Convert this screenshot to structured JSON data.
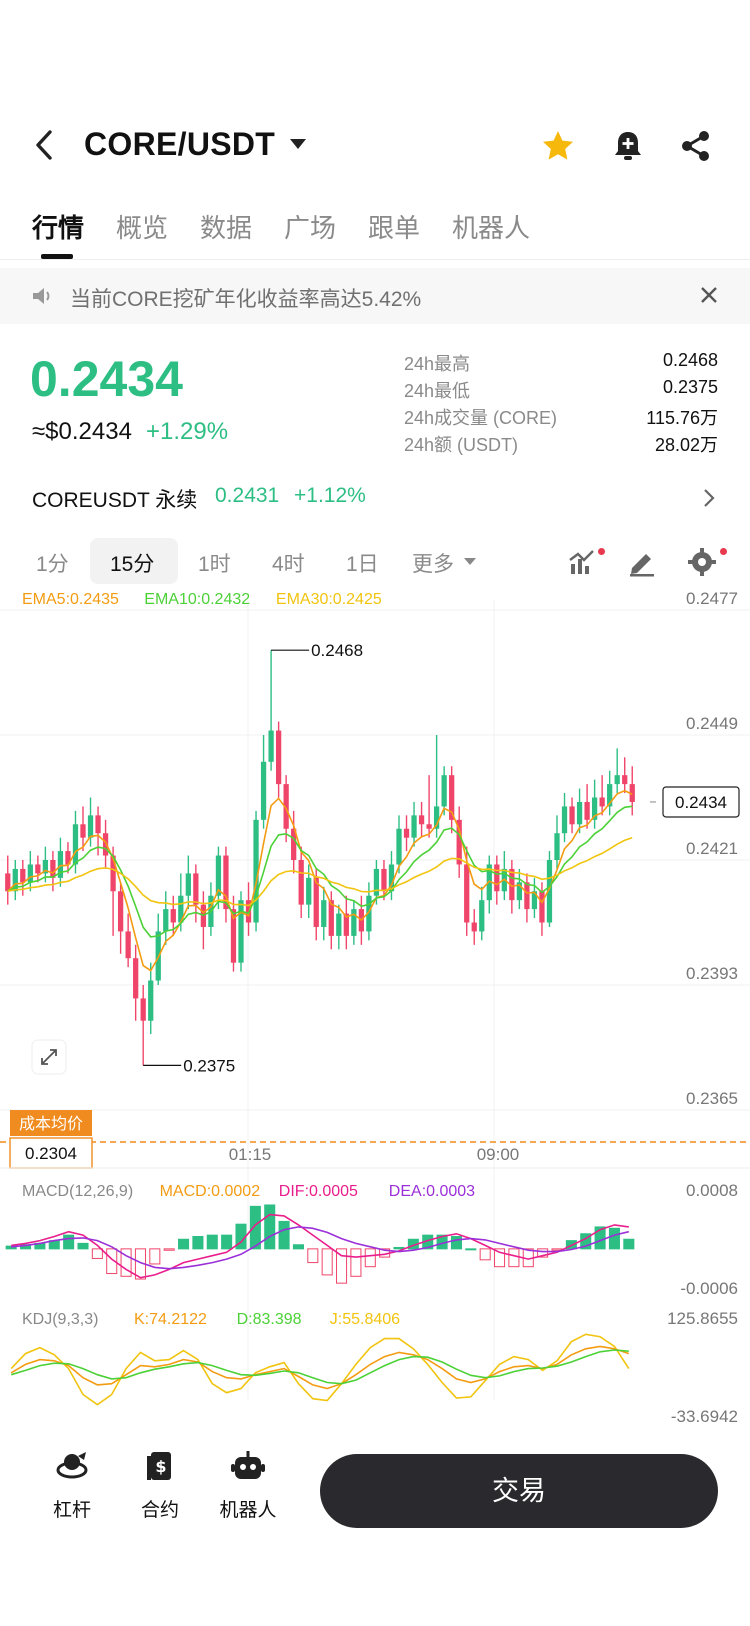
{
  "header": {
    "pair": "CORE/USDT",
    "icons": [
      "back-icon",
      "dropdown-caret-icon",
      "star-icon",
      "bell-plus-icon",
      "share-icon"
    ],
    "star_color": "#f5b80b"
  },
  "tabs": [
    {
      "label": "行情",
      "active": true
    },
    {
      "label": "概览"
    },
    {
      "label": "数据"
    },
    {
      "label": "广场"
    },
    {
      "label": "跟单"
    },
    {
      "label": "机器人"
    }
  ],
  "notice": {
    "text": "当前CORE挖矿年化收益率高达5.42%",
    "icons": [
      "speaker-icon",
      "close-icon"
    ]
  },
  "ticker": {
    "last_price": "0.2434",
    "usd_price": "≈$0.2434",
    "change_pct": "+1.29%",
    "stats": [
      {
        "label": "24h最高",
        "value": "0.2468"
      },
      {
        "label": "24h最低",
        "value": "0.2375"
      },
      {
        "label": "24h成交量 (CORE)",
        "value": "115.76万"
      },
      {
        "label": "24h额 (USDT)",
        "value": "28.02万"
      }
    ],
    "up_color": "#2dbe84",
    "down_color": "#f0456a"
  },
  "perpetual": {
    "name": "COREUSDT 永续",
    "price": "0.2431",
    "change": "+1.12%"
  },
  "intervals": {
    "items": [
      "1分",
      "15分",
      "1时",
      "4时",
      "1日",
      "更多"
    ],
    "active": "15分",
    "tool_icons": [
      "indicator-icon",
      "draw-pen-icon",
      "settings-gear-icon"
    ]
  },
  "chart_data": {
    "type": "candlestick",
    "main": {
      "legend": [
        {
          "name": "EMA5",
          "value": "EMA5:0.2435",
          "color": "#f39c12"
        },
        {
          "name": "EMA10",
          "value": "EMA10:0.2432",
          "color": "#4cd137"
        },
        {
          "name": "EMA30",
          "value": "EMA30:0.2425",
          "color": "#f1c40f"
        }
      ],
      "y_ticks": [
        "0.2477",
        "0.2449",
        "0.2421",
        "0.2393",
        "0.2365"
      ],
      "ylim": [
        0.2365,
        0.2477
      ],
      "x_ticks": [
        "01:15",
        "09:00"
      ],
      "high_marker": "0.2468",
      "low_marker": "0.2375",
      "current_price": "0.2434",
      "cost_label": "成本均价",
      "cost_value": "0.2304",
      "candles": [
        [
          0.2418,
          0.2414,
          0.2422,
          0.2411
        ],
        [
          0.2414,
          0.2419,
          0.2421,
          0.2412
        ],
        [
          0.2419,
          0.2416,
          0.2421,
          0.2413
        ],
        [
          0.2416,
          0.242,
          0.2423,
          0.2414
        ],
        [
          0.242,
          0.2418,
          0.2422,
          0.2416
        ],
        [
          0.2418,
          0.2421,
          0.2424,
          0.2416
        ],
        [
          0.2421,
          0.2417,
          0.2423,
          0.2414
        ],
        [
          0.2417,
          0.2423,
          0.2426,
          0.2415
        ],
        [
          0.2423,
          0.242,
          0.2425,
          0.2418
        ],
        [
          0.242,
          0.2429,
          0.2432,
          0.2418
        ],
        [
          0.2429,
          0.2426,
          0.2433,
          0.2423
        ],
        [
          0.2426,
          0.2431,
          0.2435,
          0.2424
        ],
        [
          0.2431,
          0.2427,
          0.2433,
          0.2422
        ],
        [
          0.2427,
          0.2422,
          0.243,
          0.2419
        ],
        [
          0.2422,
          0.2414,
          0.2424,
          0.2404
        ],
        [
          0.2414,
          0.2405,
          0.2416,
          0.24
        ],
        [
          0.2405,
          0.2399,
          0.2409,
          0.2397
        ],
        [
          0.2399,
          0.239,
          0.2402,
          0.2385
        ],
        [
          0.239,
          0.2385,
          0.2393,
          0.2375
        ],
        [
          0.2385,
          0.2394,
          0.2398,
          0.2382
        ],
        [
          0.2394,
          0.2405,
          0.2409,
          0.2393
        ],
        [
          0.2405,
          0.241,
          0.2414,
          0.2402
        ],
        [
          0.241,
          0.2407,
          0.2413,
          0.2404
        ],
        [
          0.2407,
          0.2413,
          0.2418,
          0.2405
        ],
        [
          0.2413,
          0.2418,
          0.2422,
          0.241
        ],
        [
          0.2418,
          0.2411,
          0.242,
          0.2407
        ],
        [
          0.2411,
          0.2406,
          0.2414,
          0.2401
        ],
        [
          0.2406,
          0.2413,
          0.2416,
          0.2404
        ],
        [
          0.2413,
          0.2422,
          0.2424,
          0.241
        ],
        [
          0.2422,
          0.241,
          0.2424,
          0.2407
        ],
        [
          0.241,
          0.2398,
          0.2413,
          0.2396
        ],
        [
          0.2398,
          0.2412,
          0.2414,
          0.2396
        ],
        [
          0.2412,
          0.2407,
          0.2416,
          0.2404
        ],
        [
          0.2407,
          0.243,
          0.2432,
          0.2405
        ],
        [
          0.243,
          0.2443,
          0.2449,
          0.2428
        ],
        [
          0.2443,
          0.245,
          0.2468,
          0.2441
        ],
        [
          0.245,
          0.2438,
          0.2452,
          0.2435
        ],
        [
          0.2438,
          0.2428,
          0.244,
          0.2425
        ],
        [
          0.2428,
          0.2421,
          0.2432,
          0.2418
        ],
        [
          0.2421,
          0.2411,
          0.2424,
          0.2408
        ],
        [
          0.2411,
          0.2417,
          0.242,
          0.2408
        ],
        [
          0.2417,
          0.2406,
          0.2419,
          0.2403
        ],
        [
          0.2406,
          0.2412,
          0.2415,
          0.2403
        ],
        [
          0.2412,
          0.2404,
          0.2414,
          0.2401
        ],
        [
          0.2404,
          0.2409,
          0.2411,
          0.2401
        ],
        [
          0.2409,
          0.2404,
          0.2413,
          0.2401
        ],
        [
          0.2404,
          0.241,
          0.2412,
          0.2402
        ],
        [
          0.241,
          0.2405,
          0.2413,
          0.2402
        ],
        [
          0.2405,
          0.2413,
          0.2416,
          0.2403
        ],
        [
          0.2413,
          0.2419,
          0.2421,
          0.2411
        ],
        [
          0.2419,
          0.2414,
          0.2421,
          0.2412
        ],
        [
          0.2414,
          0.242,
          0.2423,
          0.2412
        ],
        [
          0.242,
          0.2428,
          0.2431,
          0.2418
        ],
        [
          0.2428,
          0.2426,
          0.2431,
          0.2423
        ],
        [
          0.2426,
          0.2431,
          0.2434,
          0.2424
        ],
        [
          0.2431,
          0.2429,
          0.2434,
          0.2426
        ],
        [
          0.2429,
          0.2428,
          0.244,
          0.2426
        ],
        [
          0.2428,
          0.2433,
          0.2449,
          0.2426
        ],
        [
          0.2433,
          0.244,
          0.2442,
          0.2431
        ],
        [
          0.244,
          0.243,
          0.2442,
          0.2427
        ],
        [
          0.243,
          0.242,
          0.2433,
          0.2417
        ],
        [
          0.242,
          0.2407,
          0.2424,
          0.2404
        ],
        [
          0.2407,
          0.2405,
          0.241,
          0.2402
        ],
        [
          0.2405,
          0.2412,
          0.2415,
          0.2403
        ],
        [
          0.2412,
          0.242,
          0.2422,
          0.2409
        ],
        [
          0.242,
          0.2414,
          0.2422,
          0.2411
        ],
        [
          0.2414,
          0.2419,
          0.2423,
          0.2412
        ],
        [
          0.2419,
          0.2412,
          0.2421,
          0.2409
        ],
        [
          0.2412,
          0.2416,
          0.2419,
          0.241
        ],
        [
          0.2416,
          0.241,
          0.2418,
          0.2407
        ],
        [
          0.241,
          0.2414,
          0.2417,
          0.2408
        ],
        [
          0.2414,
          0.2407,
          0.2416,
          0.2404
        ],
        [
          0.2407,
          0.2421,
          0.2423,
          0.2406
        ],
        [
          0.2421,
          0.2427,
          0.2431,
          0.2419
        ],
        [
          0.2427,
          0.2433,
          0.2436,
          0.2425
        ],
        [
          0.2433,
          0.2429,
          0.2435,
          0.2427
        ],
        [
          0.2429,
          0.2434,
          0.2437,
          0.2427
        ],
        [
          0.2434,
          0.243,
          0.2438,
          0.2428
        ],
        [
          0.243,
          0.2435,
          0.2439,
          0.2428
        ],
        [
          0.2435,
          0.2433,
          0.244,
          0.2431
        ],
        [
          0.2433,
          0.2438,
          0.2441,
          0.2431
        ],
        [
          0.2438,
          0.244,
          0.2446,
          0.2436
        ],
        [
          0.244,
          0.2438,
          0.2444,
          0.2436
        ],
        [
          0.2438,
          0.2434,
          0.2442,
          0.2431
        ]
      ]
    },
    "macd": {
      "legend": [
        {
          "value": "MACD(12,26,9)",
          "color": "#888888"
        },
        {
          "value": "MACD:0.0002",
          "color": "#f39c12"
        },
        {
          "value": "DIF:0.0005",
          "color": "#e91e8c"
        },
        {
          "value": "DEA:0.0003",
          "color": "#9b30d9"
        }
      ],
      "y_ticks": [
        "0.0008",
        "-0.0006"
      ],
      "ylim": [
        -0.0006,
        0.0008
      ],
      "dif": [
        5e-05,
        8e-05,
        0.00012,
        0.00018,
        0.00025,
        0.0002,
        5e-05,
        -0.00015,
        -0.0003,
        -0.00042,
        -0.00038,
        -0.0003,
        -0.0002,
        -0.00015,
        -0.0001,
        -5e-05,
        0.0001,
        0.00035,
        0.0005,
        0.00048,
        0.00035,
        0.0002,
        5e-05,
        -0.0001,
        -0.00012,
        -0.0001,
        -8e-05,
        -3e-05,
        5e-05,
        0.00012,
        0.00018,
        0.00022,
        0.00015,
        5e-05,
        -5e-05,
        -0.0001,
        -0.00015,
        -0.0001,
        -5e-05,
        5e-05,
        0.00015,
        0.00028,
        0.00035,
        0.00032
      ],
      "dea": [
        3e-05,
        5e-05,
        8e-05,
        0.00012,
        0.00015,
        0.00016,
        0.00012,
        3e-05,
        -0.0001,
        -0.0002,
        -0.00027,
        -0.00029,
        -0.00027,
        -0.00024,
        -0.0002,
        -0.00015,
        -8e-05,
        4e-05,
        0.00018,
        0.00028,
        0.00032,
        0.0003,
        0.00024,
        0.00015,
        8e-05,
        3e-05,
        -2e-05,
        -4e-05,
        -2e-05,
        2e-05,
        8e-05,
        0.00013,
        0.00015,
        0.00013,
        8e-05,
        3e-05,
        -2e-05,
        -4e-05,
        -4e-05,
        -1e-05,
        4e-05,
        0.00012,
        0.0002,
        0.00025
      ]
    },
    "kdj": {
      "legend": [
        {
          "value": "KDJ(9,3,3)",
          "color": "#888888"
        },
        {
          "value": "K:74.2122",
          "color": "#f39c12"
        },
        {
          "value": "D:83.398",
          "color": "#4cd137"
        },
        {
          "value": "J:55.8406",
          "color": "#f1c40f"
        }
      ],
      "y_ticks": [
        "125.8655",
        "-33.6942"
      ],
      "ylim": [
        -33.6942,
        125.8655
      ],
      "k": [
        48,
        62,
        70,
        68,
        60,
        40,
        28,
        30,
        45,
        60,
        58,
        62,
        70,
        66,
        50,
        40,
        38,
        45,
        50,
        55,
        42,
        28,
        22,
        30,
        45,
        62,
        75,
        82,
        78,
        70,
        55,
        38,
        32,
        38,
        50,
        58,
        60,
        55,
        62,
        78,
        88,
        92,
        88,
        80
      ],
      "d": [
        45,
        52,
        60,
        64,
        63,
        55,
        45,
        38,
        40,
        48,
        54,
        58,
        63,
        65,
        60,
        52,
        45,
        44,
        47,
        51,
        48,
        40,
        32,
        30,
        36,
        48,
        60,
        70,
        75,
        74,
        66,
        54,
        44,
        40,
        43,
        50,
        55,
        56,
        59,
        66,
        75,
        83,
        86,
        84
      ],
      "j": [
        55,
        80,
        90,
        78,
        55,
        12,
        -5,
        12,
        55,
        82,
        68,
        70,
        85,
        70,
        30,
        15,
        22,
        48,
        58,
        65,
        30,
        5,
        2,
        30,
        62,
        90,
        105,
        105,
        88,
        62,
        32,
        6,
        8,
        35,
        62,
        75,
        70,
        52,
        68,
        100,
        112,
        108,
        92,
        55
      ]
    }
  },
  "bottom_nav": [
    {
      "label": "杠杆",
      "icon": "leverage-icon"
    },
    {
      "label": "合约",
      "icon": "contract-icon"
    },
    {
      "label": "机器人",
      "icon": "robot-icon"
    }
  ],
  "trade_button": "交易"
}
